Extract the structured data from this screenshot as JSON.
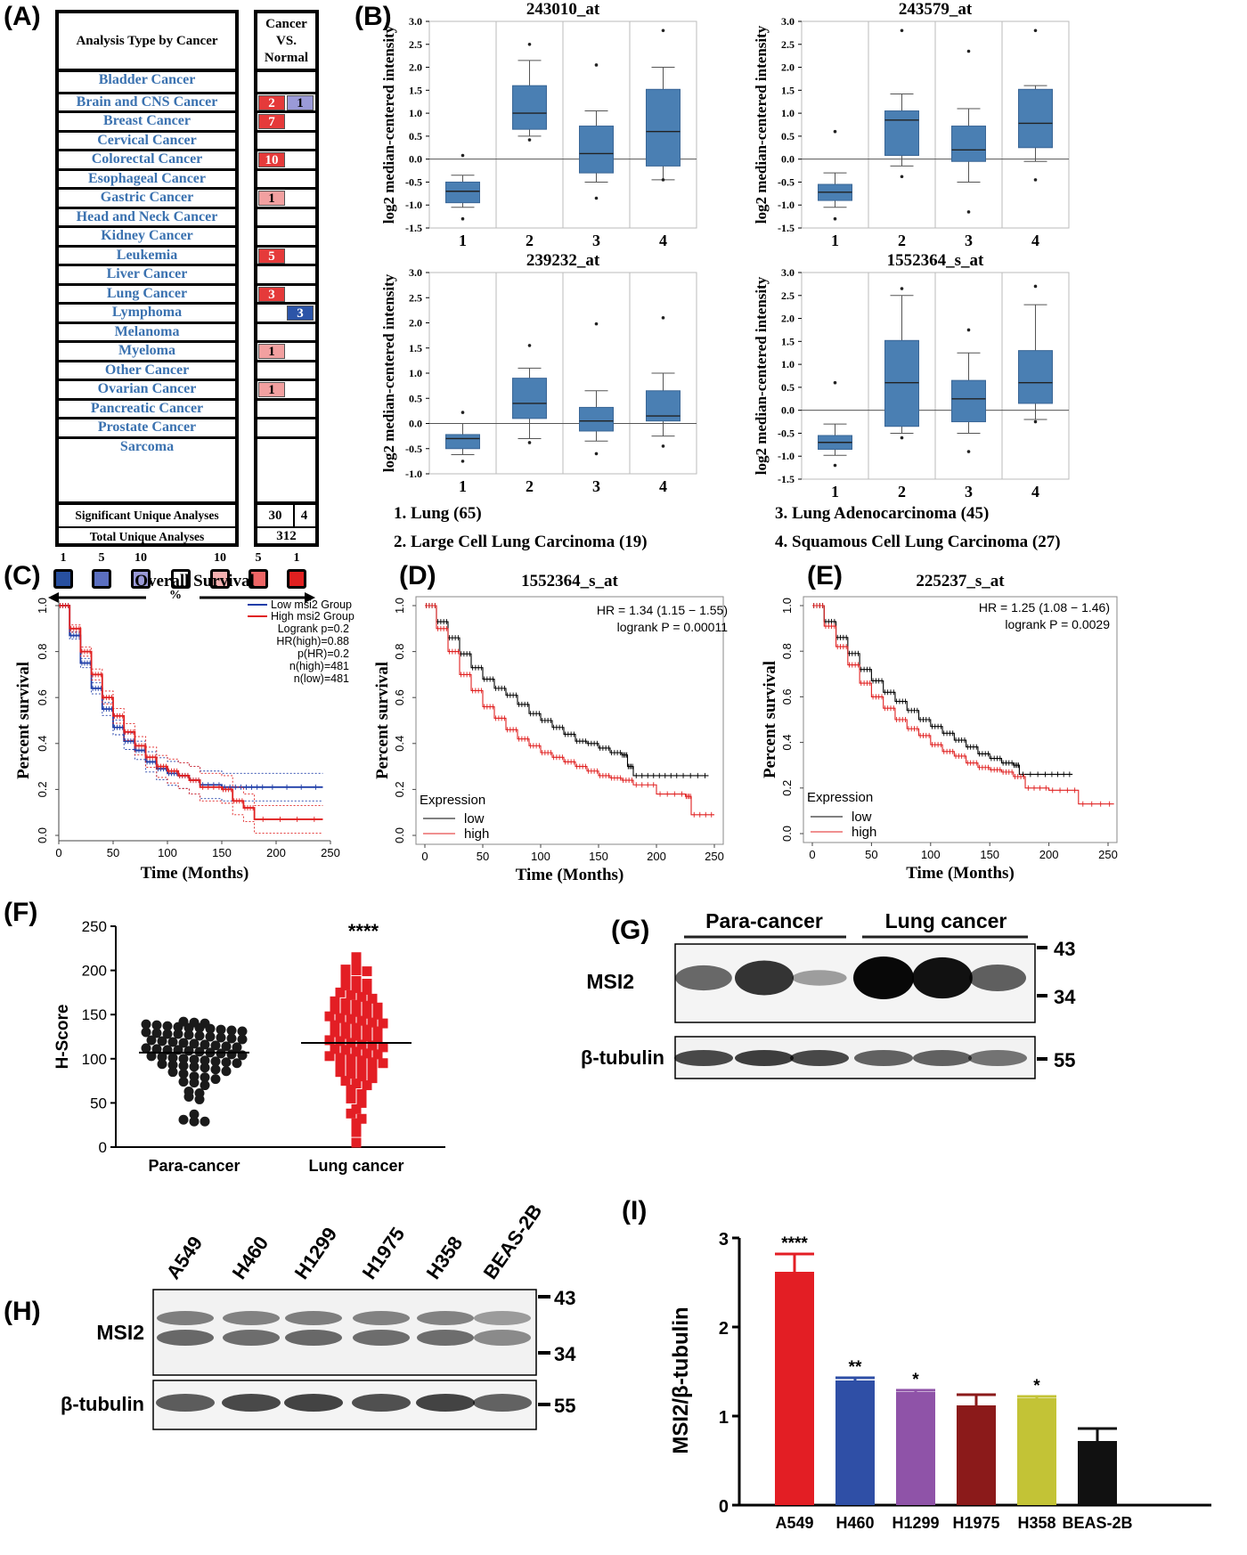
{
  "panel_labels": {
    "A": "(A)",
    "B": "(B)",
    "C": "(C)",
    "D": "(D)",
    "E": "(E)",
    "F": "(F)",
    "G": "(G)",
    "H": "(H)",
    "I": "(I)"
  },
  "panelA": {
    "header_left": "Analysis Type by Cancer",
    "header_right": "Cancer VS. Normal",
    "rows": [
      {
        "name": "Bladder Cancer",
        "up": "",
        "down": ""
      },
      {
        "name": "Brain and CNS Cancer",
        "up": "2",
        "down": "1"
      },
      {
        "name": "Breast Cancer",
        "up": "7",
        "down": ""
      },
      {
        "name": "Cervical Cancer",
        "up": "",
        "down": ""
      },
      {
        "name": "Colorectal Cancer",
        "up": "10",
        "down": ""
      },
      {
        "name": "Esophageal Cancer",
        "up": "",
        "down": ""
      },
      {
        "name": "Gastric Cancer",
        "up": "1",
        "down": ""
      },
      {
        "name": "Head and Neck Cancer",
        "up": "",
        "down": ""
      },
      {
        "name": "Kidney Cancer",
        "up": "",
        "down": ""
      },
      {
        "name": "Leukemia",
        "up": "5",
        "down": ""
      },
      {
        "name": "Liver Cancer",
        "up": "",
        "down": ""
      },
      {
        "name": "Lung Cancer",
        "up": "3",
        "down": ""
      },
      {
        "name": "Lymphoma",
        "up": "",
        "down": "3"
      },
      {
        "name": "Melanoma",
        "up": "",
        "down": ""
      },
      {
        "name": "Myeloma",
        "up": "1",
        "down": ""
      },
      {
        "name": "Other Cancer",
        "up": "",
        "down": ""
      },
      {
        "name": "Ovarian Cancer",
        "up": "1",
        "down": ""
      },
      {
        "name": "Pancreatic Cancer",
        "up": "",
        "down": ""
      },
      {
        "name": "Prostate Cancer",
        "up": "",
        "down": ""
      },
      {
        "name": "Sarcoma",
        "up": "",
        "down": ""
      }
    ],
    "sig_label": "Significant Unique Analyses",
    "sig_up": "30",
    "sig_down": "4",
    "total_label": "Total Unique Analyses",
    "total_value": "312",
    "legend_numbers": [
      "1",
      "5",
      "10",
      "",
      "10",
      "5",
      "1"
    ],
    "legend_colors": [
      "#2850a0",
      "#5b6fc0",
      "#9a9ad8",
      "#ffffff",
      "#f4b0b0",
      "#ee6666",
      "#e02020"
    ],
    "legend_pct": "%",
    "colors": {
      "up_strong": "#e53a3a",
      "up_light": "#f2a0a0",
      "down_strong": "#2c55a8",
      "down_light": "#9a9ad8",
      "text_blue": "#3b72b0"
    }
  },
  "panelB": {
    "ylabel": "log2 median-centered intensity",
    "box_color": "#4a7fb3",
    "legend": [
      "1. Lung (65)",
      "2. Large Cell Lung Carcinoma (19)",
      "3. Lung Adenocarcinoma (45)",
      "4. Squamous Cell Lung Carcinoma (27)"
    ]
  },
  "panelC": {
    "title": "Overall Survival",
    "xlabel": "Time (Months)",
    "ylabel": "Percent survival",
    "legend": [
      "Low msi2 Group",
      "High msi2 Group"
    ],
    "stats": [
      "Logrank p=0.2",
      "HR(high)=0.88",
      "p(HR)=0.2",
      "n(high)=481",
      "n(low)=481"
    ]
  },
  "panelD": {
    "title": "1552364_s_at",
    "hr": "HR = 1.34 (1.15 − 1.55)",
    "p": "logrank P = 0.00011",
    "xlabel": "Time (Months)",
    "ylabel": "Percent survival",
    "legend_title": "Expression",
    "legend": [
      "low",
      "high"
    ]
  },
  "panelE": {
    "title": "225237_s_at",
    "hr": "HR = 1.25 (1.08 − 1.46)",
    "p": "logrank P = 0.0029",
    "xlabel": "Time (Months)",
    "ylabel": "Percent survival",
    "legend_title": "Expression",
    "legend": [
      "low",
      "high"
    ]
  },
  "panelF": {
    "ylabel": "H-Score",
    "groups": [
      "Para-cancer",
      "Lung cancer"
    ],
    "sig": "****"
  },
  "panelG": {
    "groups": [
      "Para-cancer",
      "Lung cancer"
    ],
    "rows": [
      "MSI2",
      "β-tubulin"
    ],
    "markers": [
      "43",
      "34",
      "55"
    ]
  },
  "panelH": {
    "lanes": [
      "A549",
      "H460",
      "H1299",
      "H1975",
      "H358",
      "BEAS-2B"
    ],
    "rows": [
      "MSI2",
      "β-tubulin"
    ],
    "markers": [
      "43",
      "34",
      "55"
    ]
  },
  "chart_data": [
    {
      "type": "box",
      "panel": "B",
      "title": "243010_at",
      "categories": [
        "1",
        "2",
        "3",
        "4"
      ],
      "ylim": [
        -1.5,
        3.0
      ],
      "series": [
        {
          "name": "1",
          "min": -1.05,
          "q1": -0.95,
          "median": -0.7,
          "q3": -0.5,
          "max": -0.35,
          "outliers": [
            0.08,
            -1.3
          ]
        },
        {
          "name": "2",
          "min": 0.5,
          "q1": 0.65,
          "median": 1.0,
          "q3": 1.6,
          "max": 2.15,
          "outliers": [
            2.5,
            0.42
          ]
        },
        {
          "name": "3",
          "min": -0.5,
          "q1": -0.3,
          "median": 0.12,
          "q3": 0.72,
          "max": 1.05,
          "outliers": [
            2.05,
            -0.85
          ]
        },
        {
          "name": "4",
          "min": -0.45,
          "q1": -0.15,
          "median": 0.6,
          "q3": 1.52,
          "max": 2.0,
          "outliers": [
            2.8,
            -0.45
          ]
        }
      ]
    },
    {
      "type": "box",
      "panel": "B",
      "title": "243579_at",
      "categories": [
        "1",
        "2",
        "3",
        "4"
      ],
      "ylim": [
        -1.5,
        3.0
      ],
      "series": [
        {
          "name": "1",
          "min": -1.05,
          "q1": -0.9,
          "median": -0.72,
          "q3": -0.55,
          "max": -0.3,
          "outliers": [
            0.6,
            -1.3
          ]
        },
        {
          "name": "2",
          "min": -0.15,
          "q1": 0.08,
          "median": 0.85,
          "q3": 1.05,
          "max": 1.42,
          "outliers": [
            2.8,
            -0.38
          ]
        },
        {
          "name": "3",
          "min": -0.5,
          "q1": -0.05,
          "median": 0.2,
          "q3": 0.72,
          "max": 1.1,
          "outliers": [
            2.35,
            -1.15
          ]
        },
        {
          "name": "4",
          "min": -0.05,
          "q1": 0.25,
          "median": 0.78,
          "q3": 1.52,
          "max": 1.6,
          "outliers": [
            2.8,
            -0.45
          ]
        }
      ]
    },
    {
      "type": "box",
      "panel": "B",
      "title": "239232_at",
      "categories": [
        "1",
        "2",
        "3",
        "4"
      ],
      "ylim": [
        -1.0,
        3.0
      ],
      "series": [
        {
          "name": "1",
          "min": -0.62,
          "q1": -0.5,
          "median": -0.3,
          "q3": -0.22,
          "max": 0.0,
          "outliers": [
            0.22,
            -0.75
          ]
        },
        {
          "name": "2",
          "min": -0.3,
          "q1": 0.1,
          "median": 0.4,
          "q3": 0.9,
          "max": 1.1,
          "outliers": [
            1.55,
            -0.38
          ]
        },
        {
          "name": "3",
          "min": -0.35,
          "q1": -0.15,
          "median": 0.05,
          "q3": 0.32,
          "max": 0.65,
          "outliers": [
            1.98,
            -0.6
          ]
        },
        {
          "name": "4",
          "min": -0.25,
          "q1": 0.05,
          "median": 0.15,
          "q3": 0.65,
          "max": 1.0,
          "outliers": [
            2.1,
            -0.45
          ]
        }
      ]
    },
    {
      "type": "box",
      "panel": "B",
      "title": "1552364_s_at",
      "categories": [
        "1",
        "2",
        "3",
        "4"
      ],
      "ylim": [
        -1.5,
        3.0
      ],
      "series": [
        {
          "name": "1",
          "min": -0.98,
          "q1": -0.85,
          "median": -0.7,
          "q3": -0.55,
          "max": -0.3,
          "outliers": [
            0.6,
            -1.2
          ]
        },
        {
          "name": "2",
          "min": -0.5,
          "q1": -0.35,
          "median": 0.6,
          "q3": 1.52,
          "max": 2.5,
          "outliers": [
            2.65,
            -0.6
          ]
        },
        {
          "name": "3",
          "min": -0.5,
          "q1": -0.25,
          "median": 0.25,
          "q3": 0.65,
          "max": 1.25,
          "outliers": [
            1.75,
            -0.9
          ]
        },
        {
          "name": "4",
          "min": -0.2,
          "q1": 0.15,
          "median": 0.6,
          "q3": 1.3,
          "max": 2.3,
          "outliers": [
            2.7,
            -0.25
          ]
        }
      ]
    },
    {
      "type": "line",
      "panel": "C",
      "title": "Overall Survival",
      "xlabel": "Time (Months)",
      "ylabel": "Percent survival",
      "xlim": [
        0,
        250
      ],
      "ylim": [
        0,
        1
      ],
      "series": [
        {
          "name": "Low msi2 Group",
          "color": "#1f3ea8",
          "x": [
            0,
            10,
            20,
            30,
            40,
            50,
            60,
            70,
            80,
            90,
            100,
            110,
            120,
            130,
            150,
            170,
            190,
            243
          ],
          "y": [
            1,
            0.87,
            0.75,
            0.64,
            0.55,
            0.47,
            0.41,
            0.37,
            0.32,
            0.29,
            0.27,
            0.26,
            0.24,
            0.22,
            0.21,
            0.21,
            0.21,
            0.21
          ]
        },
        {
          "name": "High msi2 Group",
          "color": "#e02020",
          "x": [
            0,
            10,
            20,
            30,
            40,
            50,
            60,
            70,
            80,
            90,
            100,
            110,
            120,
            130,
            150,
            160,
            170,
            180,
            243
          ],
          "y": [
            1,
            0.9,
            0.8,
            0.7,
            0.6,
            0.52,
            0.45,
            0.39,
            0.34,
            0.3,
            0.28,
            0.26,
            0.24,
            0.21,
            0.2,
            0.15,
            0.12,
            0.07,
            0.07
          ]
        }
      ]
    },
    {
      "type": "line",
      "panel": "D",
      "title": "1552364_s_at",
      "xlabel": "Time (Months)",
      "ylabel": "Percent survival",
      "xlim": [
        0,
        250
      ],
      "ylim": [
        0,
        1
      ],
      "series": [
        {
          "name": "low",
          "color": "#000000",
          "x": [
            0,
            10,
            20,
            30,
            40,
            50,
            60,
            70,
            80,
            90,
            100,
            110,
            120,
            130,
            140,
            150,
            160,
            170,
            175,
            180,
            200,
            220,
            245
          ],
          "y": [
            1,
            0.93,
            0.86,
            0.79,
            0.73,
            0.68,
            0.64,
            0.61,
            0.57,
            0.53,
            0.5,
            0.47,
            0.44,
            0.41,
            0.4,
            0.38,
            0.36,
            0.35,
            0.3,
            0.26,
            0.26,
            0.26,
            0.26
          ]
        },
        {
          "name": "high",
          "color": "#e02020",
          "x": [
            0,
            10,
            20,
            30,
            40,
            50,
            60,
            70,
            80,
            90,
            100,
            110,
            120,
            130,
            140,
            150,
            160,
            170,
            180,
            200,
            225,
            230,
            250
          ],
          "y": [
            1,
            0.9,
            0.8,
            0.7,
            0.63,
            0.56,
            0.51,
            0.46,
            0.42,
            0.39,
            0.36,
            0.34,
            0.32,
            0.3,
            0.28,
            0.26,
            0.25,
            0.24,
            0.22,
            0.18,
            0.17,
            0.09,
            0.09
          ]
        }
      ]
    },
    {
      "type": "line",
      "panel": "E",
      "title": "225237_s_at",
      "xlabel": "Time (Months)",
      "ylabel": "Percent survival",
      "xlim": [
        0,
        250
      ],
      "ylim": [
        0,
        1
      ],
      "series": [
        {
          "name": "low",
          "color": "#000000",
          "x": [
            0,
            10,
            20,
            30,
            40,
            50,
            60,
            70,
            80,
            90,
            100,
            110,
            120,
            130,
            140,
            150,
            160,
            170,
            175,
            200,
            220
          ],
          "y": [
            1,
            0.93,
            0.86,
            0.79,
            0.72,
            0.67,
            0.62,
            0.58,
            0.54,
            0.5,
            0.47,
            0.44,
            0.41,
            0.38,
            0.35,
            0.33,
            0.31,
            0.3,
            0.26,
            0.26,
            0.26
          ]
        },
        {
          "name": "high",
          "color": "#e02020",
          "x": [
            0,
            10,
            20,
            30,
            40,
            50,
            60,
            70,
            80,
            90,
            100,
            110,
            120,
            130,
            140,
            150,
            160,
            170,
            180,
            200,
            225,
            255
          ],
          "y": [
            1,
            0.91,
            0.82,
            0.74,
            0.66,
            0.6,
            0.55,
            0.5,
            0.46,
            0.43,
            0.39,
            0.36,
            0.34,
            0.31,
            0.29,
            0.28,
            0.27,
            0.25,
            0.2,
            0.19,
            0.13,
            0.13
          ]
        }
      ]
    },
    {
      "type": "scatter",
      "panel": "F",
      "ylabel": "H-Score",
      "ylim": [
        0,
        250
      ],
      "categories": [
        "Para-cancer",
        "Lung cancer"
      ],
      "series": [
        {
          "name": "Para-cancer",
          "color": "#1a1a1a",
          "median": 107,
          "values": [
            142,
            141,
            140,
            139,
            138,
            137,
            136,
            135,
            135,
            134,
            133,
            132,
            131,
            130,
            129,
            128,
            128,
            127,
            126,
            125,
            124,
            123,
            122,
            121,
            120,
            119,
            118,
            117,
            116,
            115,
            114,
            113,
            112,
            111,
            110,
            110,
            109,
            108,
            107,
            106,
            105,
            104,
            103,
            102,
            101,
            100,
            99,
            98,
            97,
            96,
            95,
            94,
            93,
            92,
            91,
            90,
            88,
            86,
            85,
            83,
            80,
            79,
            77,
            74,
            73,
            70,
            63,
            61,
            57,
            54,
            37,
            31,
            29,
            29
          ]
        },
        {
          "name": "Lung cancer",
          "color": "#e31e24",
          "median": 118,
          "values": [
            215,
            210,
            201,
            200,
            199,
            192,
            188,
            185,
            183,
            180,
            178,
            175,
            172,
            170,
            168,
            165,
            163,
            161,
            160,
            158,
            156,
            155,
            153,
            151,
            150,
            148,
            146,
            145,
            143,
            141,
            140,
            138,
            136,
            135,
            133,
            131,
            130,
            128,
            126,
            125,
            123,
            121,
            120,
            118,
            116,
            115,
            113,
            111,
            110,
            108,
            106,
            105,
            103,
            101,
            100,
            98,
            96,
            95,
            93,
            91,
            90,
            88,
            85,
            83,
            80,
            78,
            75,
            72,
            70,
            65,
            60,
            55,
            50,
            43,
            38,
            32,
            27,
            17,
            5
          ]
        }
      ]
    },
    {
      "type": "bar",
      "panel": "I",
      "ylabel": "MSI2/β-tubulin",
      "ylim": [
        0,
        3
      ],
      "categories": [
        "A549",
        "H460",
        "H1299",
        "H1975",
        "H358",
        "BEAS-2B"
      ],
      "values": [
        2.62,
        1.4,
        1.27,
        1.12,
        1.2,
        0.72
      ],
      "errors": [
        0.2,
        0.03,
        0.02,
        0.12,
        0.02,
        0.14
      ],
      "significance": [
        "****",
        "**",
        "*",
        "",
        "*",
        ""
      ],
      "colors": [
        "#e31e24",
        "#2f4fa6",
        "#8f53a8",
        "#8b1a1a",
        "#c3c336",
        "#111111"
      ]
    }
  ]
}
